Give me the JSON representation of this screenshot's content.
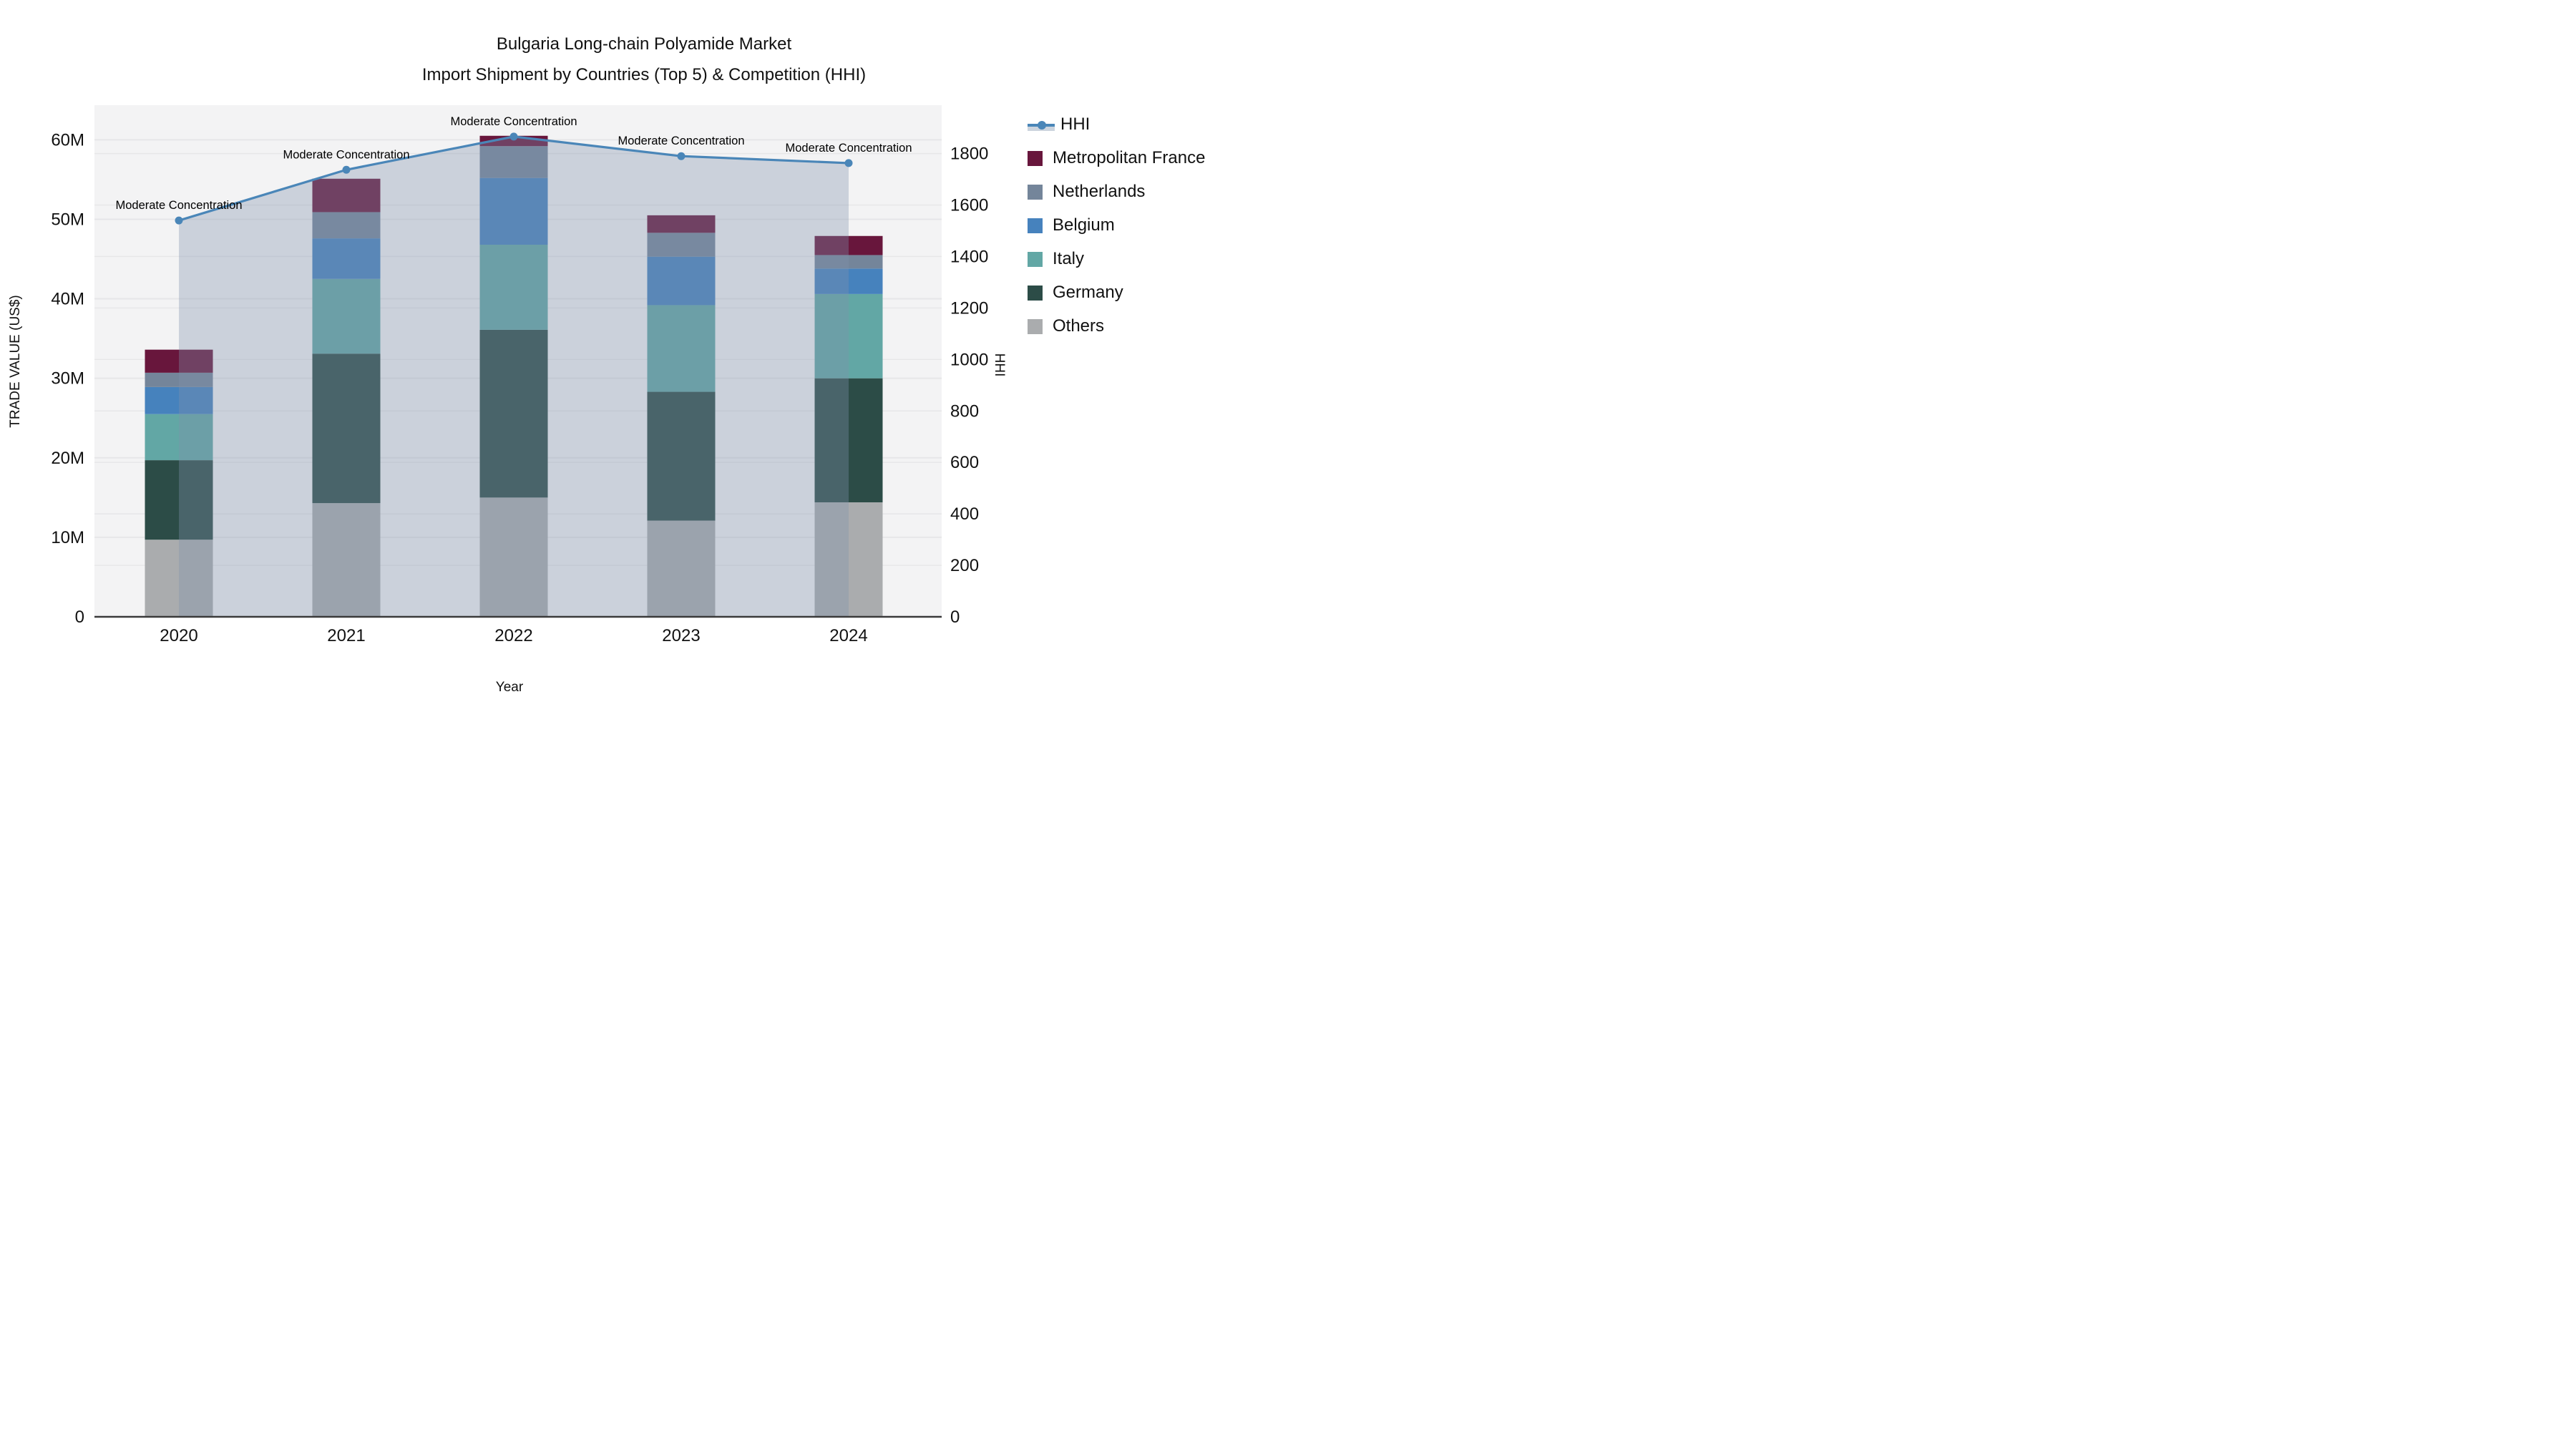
{
  "title": {
    "line1": "Bulgaria Long-chain Polyamide Market",
    "line2": "Import Shipment by Countries (Top 5) & Competition (HHI)"
  },
  "axes": {
    "y_left": {
      "title": "TRADE VALUE (US$)",
      "tick_labels": [
        "0",
        "10M",
        "20M",
        "30M",
        "40M",
        "50M",
        "60M"
      ],
      "tick_values": [
        0,
        10,
        20,
        30,
        40,
        50,
        60
      ],
      "max": 64.35
    },
    "y_right": {
      "title": "HHI",
      "tick_labels": [
        "0",
        "200",
        "400",
        "600",
        "800",
        "1000",
        "1200",
        "1400",
        "1600",
        "1800"
      ],
      "tick_values": [
        0,
        200,
        400,
        600,
        800,
        1000,
        1200,
        1400,
        1600,
        1800
      ],
      "max": 1988
    },
    "x": {
      "title": "Year"
    }
  },
  "colors": {
    "page_bg": "#ffffff",
    "plot_bg": "#f3f3f4",
    "grid": "#e6e6e8",
    "axis_line": "#3a3a3a",
    "text": "#111111",
    "hhi_line": "#4a86b8",
    "hhi_area_fill": "rgba(130,145,172,0.35)"
  },
  "chart_data": {
    "type": "bar-line-combo",
    "unit_left": "million US$",
    "unit_right": "HHI index",
    "categories": [
      "2020",
      "2021",
      "2022",
      "2023",
      "2024"
    ],
    "stack_order_bottom_to_top": [
      "Others",
      "Germany",
      "Italy",
      "Belgium",
      "Netherlands",
      "Metropolitan France"
    ],
    "series": [
      {
        "name": "Metropolitan France",
        "color": "#68163c",
        "values": [
          2.9,
          4.2,
          1.3,
          2.2,
          2.4
        ]
      },
      {
        "name": "Netherlands",
        "color": "#74859a",
        "values": [
          1.8,
          3.3,
          4.0,
          3.0,
          1.7
        ]
      },
      {
        "name": "Belgium",
        "color": "#4682bd",
        "values": [
          3.4,
          5.1,
          8.4,
          6.1,
          3.2
        ]
      },
      {
        "name": "Italy",
        "color": "#62a7a5",
        "values": [
          5.8,
          9.4,
          10.7,
          10.9,
          10.6
        ]
      },
      {
        "name": "Germany",
        "color": "#2c4c47",
        "values": [
          10.0,
          18.8,
          21.1,
          16.2,
          15.6
        ]
      },
      {
        "name": "Others",
        "color": "#aaacae",
        "values": [
          9.7,
          14.3,
          15.0,
          12.1,
          14.4
        ]
      }
    ],
    "bar_totals": [
      33.6,
      55.1,
      60.5,
      50.5,
      47.9
    ],
    "line_series": {
      "name": "HHI",
      "axis": "right",
      "values": [
        1540,
        1737,
        1866,
        1790,
        1763
      ]
    },
    "annotations": [
      {
        "category": "2020",
        "text": "Moderate Concentration"
      },
      {
        "category": "2021",
        "text": "Moderate Concentration"
      },
      {
        "category": "2022",
        "text": "Moderate Concentration"
      },
      {
        "category": "2023",
        "text": "Moderate Concentration"
      },
      {
        "category": "2024",
        "text": "Moderate Concentration"
      }
    ],
    "legend_position": "right",
    "grid_on": true,
    "ylim_left": [
      0,
      64.35
    ],
    "ylim_right": [
      0,
      1988
    ]
  }
}
